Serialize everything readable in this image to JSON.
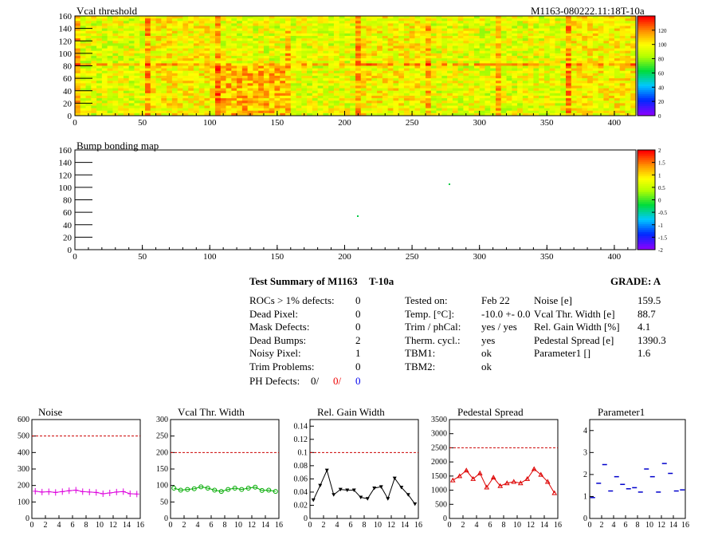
{
  "header": {
    "title": "Vcal threshold",
    "module_id": "M1163-080222.11:18T-10a"
  },
  "maps": [
    {
      "title": "Vcal threshold",
      "xticks": [
        "0",
        "50",
        "100",
        "150",
        "200",
        "250",
        "300",
        "350",
        "400"
      ],
      "yticks": [
        "0",
        "20",
        "40",
        "60",
        "80",
        "100",
        "120",
        "140",
        "160"
      ],
      "palette_labels": [
        "0",
        "20",
        "40",
        "60",
        "80",
        "100",
        "120"
      ]
    },
    {
      "title": "Bump bonding map",
      "xticks": [
        "0",
        "50",
        "100",
        "150",
        "200",
        "250",
        "300",
        "350",
        "400"
      ],
      "yticks": [
        "0",
        "20",
        "40",
        "60",
        "80",
        "100",
        "120",
        "140",
        "160"
      ],
      "palette_labels": [
        "-2",
        "-1.5",
        "-1",
        "-0.5",
        "0",
        "0.5",
        "1",
        "1.5",
        "2"
      ]
    }
  ],
  "summary": {
    "title": "Test Summary of M1163",
    "temp_label": "T-10a",
    "grade": "GRADE:  A",
    "col1": [
      {
        "label": "ROCs > 1% defects:",
        "value": "0"
      },
      {
        "label": "Dead Pixel:",
        "value": "0"
      },
      {
        "label": "Mask Defects:",
        "value": "0"
      },
      {
        "label": "Dead Bumps:",
        "value": "2"
      },
      {
        "label": "Noisy Pixel:",
        "value": "1"
      },
      {
        "label": "Trim Problems:",
        "value": "0"
      }
    ],
    "ph_defects": {
      "label": "PH Defects:",
      "v1": "0/",
      "v2": "0/",
      "v3": "0"
    },
    "col2": [
      {
        "label": "Tested on:",
        "value": "Feb 22"
      },
      {
        "label": "Temp. [°C]:",
        "value": "-10.0 +- 0.0"
      },
      {
        "label": "Trim / phCal:",
        "value": "yes / yes"
      },
      {
        "label": "Therm. cycl.:",
        "value": "yes"
      },
      {
        "label": "TBM1:",
        "value": "ok"
      },
      {
        "label": "TBM2:",
        "value": "ok"
      }
    ],
    "col3": [
      {
        "label": "Noise [e]",
        "value": "159.5"
      },
      {
        "label": "Vcal Thr. Width [e]",
        "value": "88.7"
      },
      {
        "label": "Rel. Gain Width [%]",
        "value": "4.1"
      },
      {
        "label": "Pedestal Spread [e]",
        "value": "1390.3"
      },
      {
        "label": "Parameter1 []",
        "value": "1.6"
      }
    ]
  },
  "chart_data": [
    {
      "type": "line",
      "title": "Noise",
      "color": "#dd00dd",
      "x": [
        0,
        1,
        2,
        3,
        4,
        5,
        6,
        7,
        8,
        9,
        10,
        11,
        12,
        13,
        14,
        15
      ],
      "values": [
        165,
        160,
        162,
        158,
        163,
        168,
        172,
        163,
        160,
        158,
        150,
        155,
        160,
        163,
        150,
        148
      ],
      "ylim": [
        0,
        600
      ],
      "yticks": [
        "0",
        "100",
        "200",
        "300",
        "400",
        "500",
        "600"
      ],
      "xticks": [
        "0",
        "2",
        "4",
        "6",
        "8",
        "10",
        "12",
        "14",
        "16"
      ],
      "threshold": 500,
      "marker": "cross"
    },
    {
      "type": "line",
      "title": "Vcal Thr. Width",
      "color": "#00aa00",
      "x": [
        0,
        1,
        2,
        3,
        4,
        5,
        6,
        7,
        8,
        9,
        10,
        11,
        12,
        13,
        14,
        15
      ],
      "values": [
        92,
        86,
        88,
        90,
        96,
        92,
        86,
        82,
        88,
        92,
        88,
        92,
        95,
        85,
        86,
        82
      ],
      "ylim": [
        0,
        300
      ],
      "yticks": [
        "0",
        "50",
        "100",
        "150",
        "200",
        "250",
        "300"
      ],
      "xticks": [
        "0",
        "2",
        "4",
        "6",
        "8",
        "10",
        "12",
        "14",
        "16"
      ],
      "threshold": 200,
      "marker": "circle"
    },
    {
      "type": "line",
      "title": "Rel. Gain Width",
      "color": "#000000",
      "x": [
        0,
        1,
        2,
        3,
        4,
        5,
        6,
        7,
        8,
        9,
        10,
        11,
        12,
        13,
        14,
        15
      ],
      "values": [
        0.028,
        0.05,
        0.073,
        0.036,
        0.044,
        0.043,
        0.043,
        0.032,
        0.03,
        0.046,
        0.048,
        0.03,
        0.061,
        0.047,
        0.036,
        0.022
      ],
      "ylim": [
        0,
        0.15
      ],
      "yticks": [
        "0",
        "0.02",
        "0.04",
        "0.06",
        "0.08",
        "0.1",
        "0.12",
        "0.14"
      ],
      "xticks": [
        "0",
        "2",
        "4",
        "6",
        "8",
        "10",
        "12",
        "14",
        "16"
      ],
      "threshold": 0.1,
      "marker": "triangle"
    },
    {
      "type": "line",
      "title": "Pedestal Spread",
      "color": "#dd0000",
      "x": [
        0,
        1,
        2,
        3,
        4,
        5,
        6,
        7,
        8,
        9,
        10,
        11,
        12,
        13,
        14,
        15
      ],
      "values": [
        1350,
        1500,
        1700,
        1400,
        1600,
        1100,
        1450,
        1150,
        1250,
        1300,
        1250,
        1400,
        1750,
        1550,
        1300,
        900
      ],
      "ylim": [
        0,
        3500
      ],
      "yticks": [
        "0",
        "500",
        "1000",
        "1500",
        "2000",
        "2500",
        "3000",
        "3500"
      ],
      "xticks": [
        "0",
        "2",
        "4",
        "6",
        "8",
        "10",
        "12",
        "14",
        "16"
      ],
      "threshold": 2500,
      "marker": "triangle-down"
    },
    {
      "type": "scatter",
      "title": "Parameter1",
      "color": "#0000cc",
      "x": [
        0,
        1,
        2,
        3,
        4,
        5,
        6,
        7,
        8,
        9,
        10,
        11,
        12,
        13,
        14,
        15
      ],
      "values": [
        0.95,
        1.6,
        2.45,
        1.25,
        1.9,
        1.55,
        1.35,
        1.4,
        1.2,
        2.25,
        1.9,
        1.2,
        2.5,
        2.05,
        1.25,
        1.3
      ],
      "ylim": [
        0,
        4.5
      ],
      "yticks": [
        "0",
        "1",
        "2",
        "3",
        "4"
      ],
      "xticks": [
        "0",
        "2",
        "4",
        "6",
        "8",
        "10",
        "12",
        "14",
        "16"
      ],
      "marker": "hbar"
    }
  ]
}
